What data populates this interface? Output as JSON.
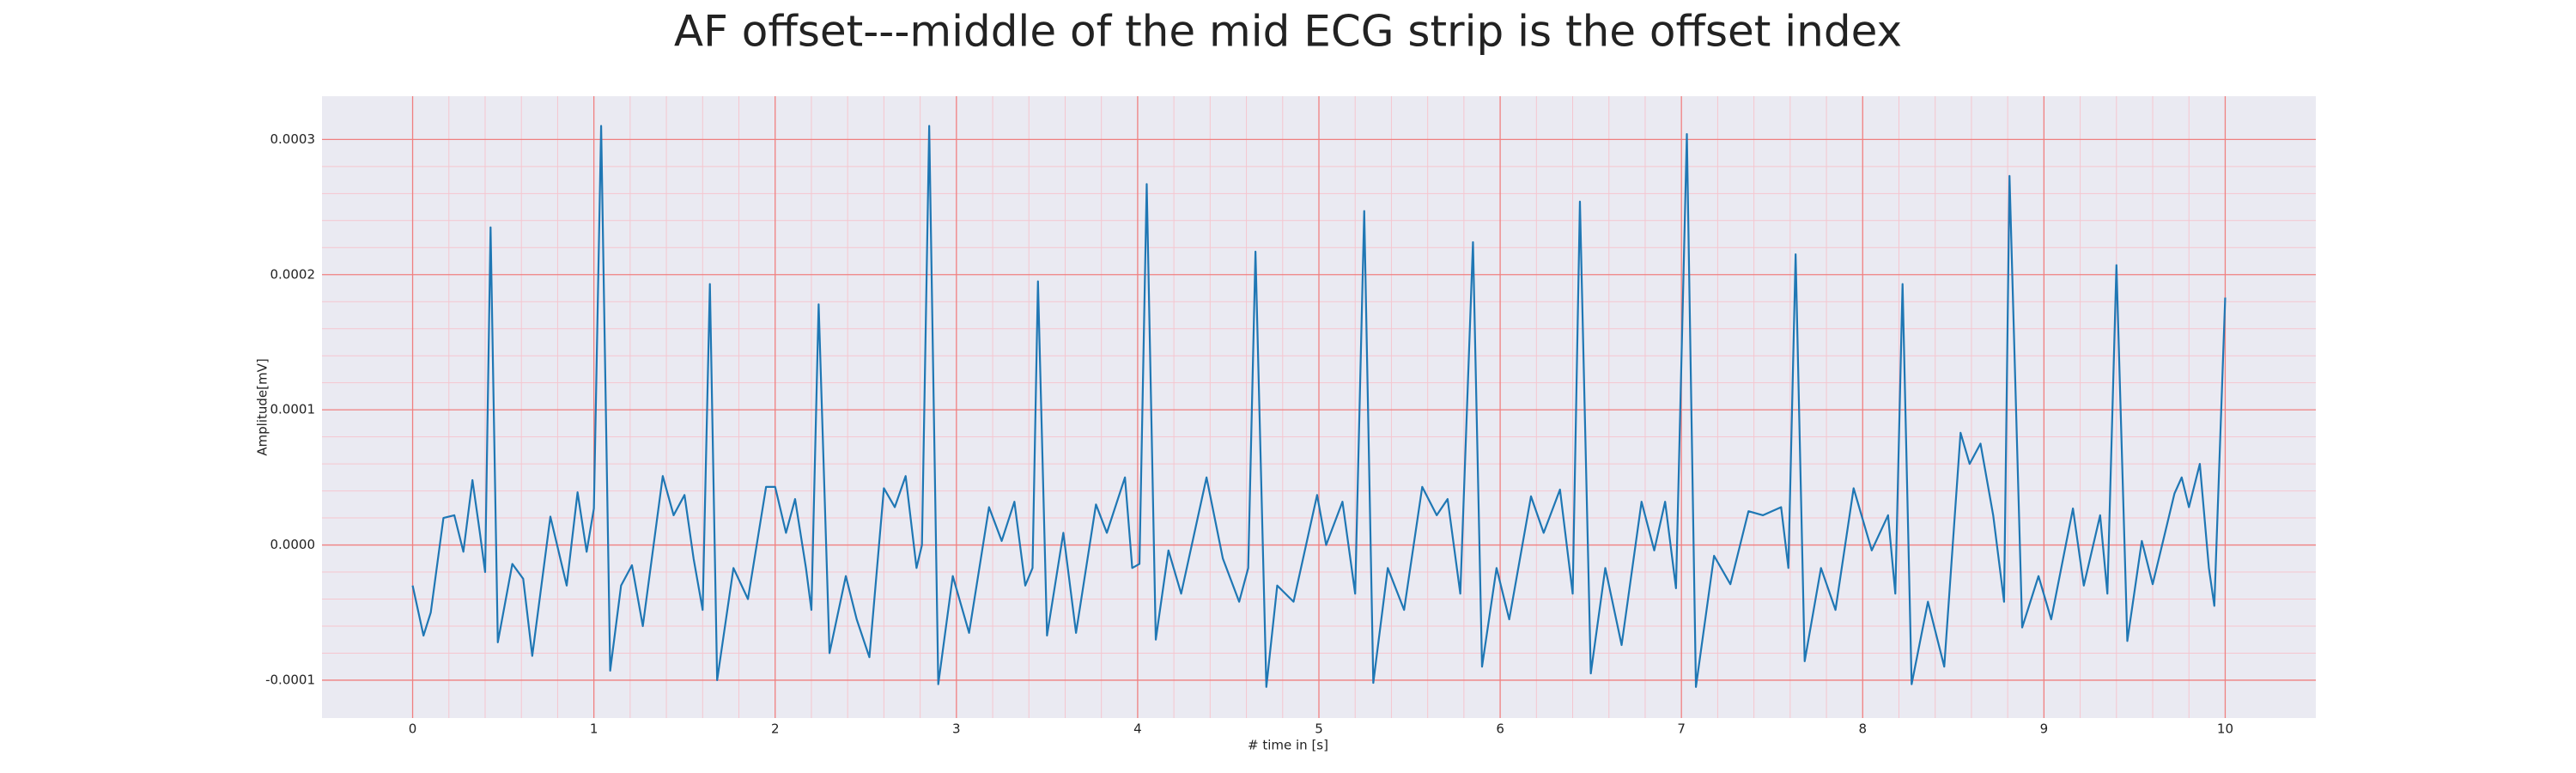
{
  "chart_data": {
    "type": "line",
    "title": "AF offset---middle of the mid ECG strip is the offset index",
    "xlabel": "# time in [s]",
    "ylabel": "Amplitude[mV]",
    "xlim": [
      -0.5,
      10.5
    ],
    "ylim": [
      -0.000128,
      0.000332
    ],
    "xticks": [
      0,
      1,
      2,
      3,
      4,
      5,
      6,
      7,
      8,
      9,
      10
    ],
    "yticks": [
      -0.0001,
      {
        "value": 0,
        "label": "0.0000"
      },
      0.0001,
      0.0002,
      0.0003
    ],
    "grid": true,
    "minor_grid": true,
    "background": "#eaeaf2",
    "grid_color": "#f08080",
    "x": [
      0,
      0.06,
      0.1,
      0.17,
      0.23,
      0.28,
      0.33,
      0.37,
      0.4,
      0.43,
      0.47,
      0.55,
      0.61,
      0.66,
      0.76,
      0.85,
      0.91,
      0.96,
      1.0,
      1.04,
      1.09,
      1.15,
      1.21,
      1.27,
      1.38,
      1.44,
      1.5,
      1.55,
      1.6,
      1.64,
      1.68,
      1.77,
      1.85,
      1.95,
      2.0,
      2.06,
      2.11,
      2.17,
      2.2,
      2.24,
      2.3,
      2.39,
      2.45,
      2.52,
      2.6,
      2.66,
      2.72,
      2.78,
      2.81,
      2.85,
      2.9,
      2.98,
      3.07,
      3.18,
      3.25,
      3.32,
      3.38,
      3.42,
      3.45,
      3.5,
      3.59,
      3.66,
      3.77,
      3.83,
      3.93,
      3.97,
      4.01,
      4.05,
      4.1,
      4.17,
      4.24,
      4.38,
      4.47,
      4.56,
      4.61,
      4.65,
      4.71,
      4.77,
      4.86,
      4.99,
      5.04,
      5.13,
      5.2,
      5.25,
      5.3,
      5.38,
      5.47,
      5.57,
      5.65,
      5.71,
      5.78,
      5.85,
      5.9,
      5.98,
      6.05,
      6.17,
      6.24,
      6.33,
      6.4,
      6.44,
      6.5,
      6.58,
      6.67,
      6.78,
      6.85,
      6.91,
      6.97,
      7.03,
      7.08,
      7.18,
      7.27,
      7.37,
      7.45,
      7.55,
      7.59,
      7.63,
      7.68,
      7.77,
      7.85,
      7.95,
      8.05,
      8.14,
      8.18,
      8.22,
      8.27,
      8.36,
      8.45,
      8.54,
      8.59,
      8.65,
      8.72,
      8.78,
      8.81,
      8.88,
      8.97,
      9.04,
      9.16,
      9.22,
      9.31,
      9.35,
      9.4,
      9.46,
      9.54,
      9.6,
      9.72,
      9.76,
      9.8,
      9.86,
      9.91,
      9.94,
      10.0
    ],
    "series": [
      {
        "color": "#1f77b4",
        "values": [
          -3e-05,
          -6.7e-05,
          -5e-05,
          2e-05,
          2.2e-05,
          -5e-06,
          4.8e-05,
          1e-05,
          -2e-05,
          0.000235,
          -7.2e-05,
          -1.4e-05,
          -2.5e-05,
          -8.2e-05,
          2.1e-05,
          -3e-05,
          3.9e-05,
          -5e-06,
          2.7e-05,
          0.00031,
          -9.3e-05,
          -3e-05,
          -1.5e-05,
          -6e-05,
          5.1e-05,
          2.2e-05,
          3.7e-05,
          -1e-05,
          -4.8e-05,
          0.000193,
          -0.0001,
          -1.7e-05,
          -4e-05,
          4.3e-05,
          4.3e-05,
          9e-06,
          3.4e-05,
          -1.7e-05,
          -4.8e-05,
          0.000178,
          -8e-05,
          -2.3e-05,
          -5.5e-05,
          -8.3e-05,
          4.2e-05,
          2.8e-05,
          5.1e-05,
          -1.7e-05,
          0,
          0.00031,
          -0.000103,
          -2.3e-05,
          -6.5e-05,
          2.8e-05,
          3e-06,
          3.2e-05,
          -3e-05,
          -1.7e-05,
          0.000195,
          -6.7e-05,
          9e-06,
          -6.5e-05,
          3e-05,
          9e-06,
          5e-05,
          -1.7e-05,
          -1.4e-05,
          0.000267,
          -7e-05,
          -4e-06,
          -3.6e-05,
          5e-05,
          -1e-05,
          -4.2e-05,
          -1.7e-05,
          0.000217,
          -0.000105,
          -3e-05,
          -4.2e-05,
          3.7e-05,
          0,
          3.2e-05,
          -3.6e-05,
          0.000247,
          -0.000102,
          -1.7e-05,
          -4.8e-05,
          4.3e-05,
          2.2e-05,
          3.4e-05,
          -3.6e-05,
          0.000224,
          -9e-05,
          -1.7e-05,
          -5.5e-05,
          3.6e-05,
          9e-06,
          4.1e-05,
          -3.6e-05,
          0.000254,
          -9.5e-05,
          -1.7e-05,
          -7.4e-05,
          3.2e-05,
          -4e-06,
          3.2e-05,
          -3.2e-05,
          0.000304,
          -0.000105,
          -8e-06,
          -2.9e-05,
          2.5e-05,
          2.2e-05,
          2.8e-05,
          -1.7e-05,
          0.000215,
          -8.6e-05,
          -1.7e-05,
          -4.8e-05,
          4.2e-05,
          -4e-06,
          2.2e-05,
          -3.6e-05,
          0.000193,
          -0.000103,
          -4.2e-05,
          -9e-05,
          8.3e-05,
          6e-05,
          7.5e-05,
          2.2e-05,
          -4.2e-05,
          0.000273,
          -6.1e-05,
          -2.3e-05,
          -5.5e-05,
          2.7e-05,
          -3e-05,
          2.2e-05,
          -3.6e-05,
          0.000207,
          -7.1e-05,
          3e-06,
          -2.9e-05,
          3.8e-05,
          5e-05,
          2.8e-05,
          6e-05,
          -1.7e-05,
          -4.5e-05,
          0.000183
        ]
      }
    ]
  }
}
